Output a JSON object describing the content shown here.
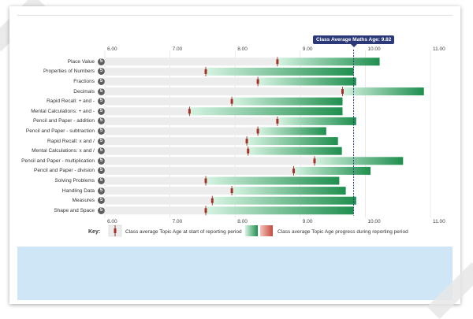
{
  "chart_data": {
    "type": "bar",
    "title": "",
    "xlim": [
      6.0,
      11.0
    ],
    "x_ticks": [
      "6.00",
      "7.00",
      "8.00",
      "9.00",
      "10.00",
      "11.00"
    ],
    "class_average": {
      "label": "Class Average Maths Age: 9.82",
      "value": 9.82
    },
    "categories": [
      {
        "name": "Place Value",
        "level": "5",
        "start": 8.65,
        "end": 10.22
      },
      {
        "name": "Properties of Numbers",
        "level": "5",
        "start": 7.55,
        "end": 9.82
      },
      {
        "name": "Fractions",
        "level": "5",
        "start": 8.35,
        "end": 9.86
      },
      {
        "name": "Decimals",
        "level": "5",
        "start": 9.65,
        "end": 10.9
      },
      {
        "name": "Rapid Recall: + and -",
        "level": "5",
        "start": 7.95,
        "end": 9.65
      },
      {
        "name": "Mental Calculations: + and -",
        "level": "5",
        "start": 7.3,
        "end": 9.65
      },
      {
        "name": "Pencil and Paper - addition",
        "level": "5",
        "start": 8.65,
        "end": 9.86
      },
      {
        "name": "Pencil and Paper - subtraction",
        "level": "5",
        "start": 8.35,
        "end": 9.4
      },
      {
        "name": "Rapid Recall: x and /",
        "level": "5",
        "start": 8.18,
        "end": 9.58
      },
      {
        "name": "Mental Calculations: x and /",
        "level": "5",
        "start": 8.2,
        "end": 9.64
      },
      {
        "name": "Pencil and Paper - multiplication",
        "level": "5",
        "start": 9.22,
        "end": 10.58
      },
      {
        "name": "Pencil and Paper - division",
        "level": "5",
        "start": 8.9,
        "end": 10.08
      },
      {
        "name": "Solving Problems",
        "level": "5",
        "start": 7.55,
        "end": 9.6
      },
      {
        "name": "Handling Data",
        "level": "5",
        "start": 7.95,
        "end": 9.7
      },
      {
        "name": "Measures",
        "level": "5",
        "start": 7.65,
        "end": 9.86
      },
      {
        "name": "Shape and Space",
        "level": "5",
        "start": 7.55,
        "end": 9.82
      }
    ]
  },
  "key": {
    "title": "Key:",
    "start_label": "Class average Topic Age at start of reporting period",
    "progress_label": "Class average Topic Age progress during reporting period"
  },
  "colors": {
    "bar_green_light": "#d6f3e2",
    "bar_green_dark": "#1f8f4e",
    "marker_red": "#a3312a",
    "red_light": "#f3c3bd",
    "red_dark": "#c44a3e",
    "background_band": "#ececec",
    "average_line": "#2c3979",
    "panel_blue": "#cfe6f7"
  }
}
